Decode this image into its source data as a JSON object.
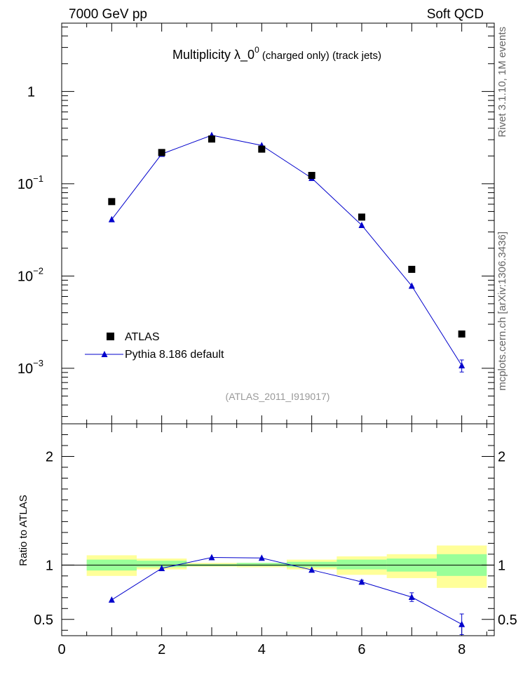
{
  "header": {
    "left": "7000 GeV pp",
    "right": "Soft QCD"
  },
  "title": {
    "main": "Multiplicity  λ_0",
    "sup": "0",
    "tail": " (charged only) (track jets)"
  },
  "side_labels": {
    "rivet": "Rivet 3.1.10, 1M events",
    "mcplots": "mcplots.cern.ch [arXiv:1306.3436]"
  },
  "analysis_tag": "(ATLAS_2011_I919017)",
  "ratio_ylabel": "Ratio to ATLAS",
  "colors": {
    "mc": "#0000cc",
    "data": "#000000",
    "band_inner": "#99ff99",
    "band_outer": "#ffff99",
    "reference": "#008800",
    "tag": "#999999"
  },
  "chart_data": [
    {
      "type": "scatter",
      "panel": "main",
      "yscale": "log",
      "xlim": [
        0,
        8.65
      ],
      "ylim": [
        0.00025,
        5.5
      ],
      "ytick_labels": [
        {
          "value": 1,
          "base": "1",
          "exp": ""
        },
        {
          "value": 0.1,
          "base": "10",
          "exp": "−1"
        },
        {
          "value": 0.01,
          "base": "10",
          "exp": "−2"
        },
        {
          "value": 0.001,
          "base": "10",
          "exp": "−3"
        }
      ],
      "legend": {
        "position": "lower-left"
      },
      "series": [
        {
          "name": "ATLAS",
          "marker": "square",
          "x": [
            1,
            2,
            3,
            4,
            5,
            6,
            7,
            8
          ],
          "y": [
            0.064,
            0.218,
            0.305,
            0.237,
            0.123,
            0.0435,
            0.0118,
            0.00235
          ]
        },
        {
          "name": "Pythia 8.186 default",
          "marker": "triangle",
          "x": [
            1,
            2,
            3,
            4,
            5,
            6,
            7,
            8
          ],
          "y": [
            0.041,
            0.21,
            0.335,
            0.26,
            0.115,
            0.0355,
            0.0078,
            0.00107
          ],
          "yerr": [
            0,
            0,
            0,
            0,
            0,
            0,
            0,
            0.00016
          ]
        }
      ]
    },
    {
      "type": "line",
      "panel": "ratio",
      "ylabel": "Ratio to ATLAS",
      "xlim": [
        0,
        8.65
      ],
      "ylim": [
        0.35,
        2.3
      ],
      "xticks": [
        0,
        2,
        4,
        6,
        8
      ],
      "yticks": [
        0.5,
        1,
        2
      ],
      "bands": [
        {
          "x0": 0.5,
          "x1": 1.5,
          "inner": [
            0.95,
            1.05
          ],
          "outer": [
            0.9,
            1.09
          ]
        },
        {
          "x0": 1.5,
          "x1": 2.5,
          "inner": [
            0.98,
            1.04
          ],
          "outer": [
            0.96,
            1.06
          ]
        },
        {
          "x0": 2.5,
          "x1": 3.5,
          "inner": [
            0.99,
            1.01
          ],
          "outer": [
            0.985,
            1.02
          ]
        },
        {
          "x0": 3.5,
          "x1": 4.5,
          "inner": [
            0.99,
            1.02
          ],
          "outer": [
            0.98,
            1.02
          ]
        },
        {
          "x0": 4.5,
          "x1": 5.5,
          "inner": [
            0.98,
            1.03
          ],
          "outer": [
            0.96,
            1.05
          ]
        },
        {
          "x0": 5.5,
          "x1": 6.5,
          "inner": [
            0.96,
            1.05
          ],
          "outer": [
            0.91,
            1.08
          ]
        },
        {
          "x0": 6.5,
          "x1": 7.5,
          "inner": [
            0.94,
            1.06
          ],
          "outer": [
            0.88,
            1.1
          ]
        },
        {
          "x0": 7.5,
          "x1": 8.5,
          "inner": [
            0.9,
            1.1
          ],
          "outer": [
            0.79,
            1.18
          ]
        }
      ],
      "series": [
        {
          "name": "Pythia 8.186 default",
          "x": [
            1,
            2,
            3,
            4,
            5,
            6,
            7,
            8
          ],
          "y": [
            0.68,
            0.97,
            1.07,
            1.065,
            0.955,
            0.845,
            0.705,
            0.455
          ],
          "yerr": [
            0,
            0,
            0,
            0,
            0,
            0.015,
            0.04,
            0.095
          ]
        }
      ]
    }
  ]
}
